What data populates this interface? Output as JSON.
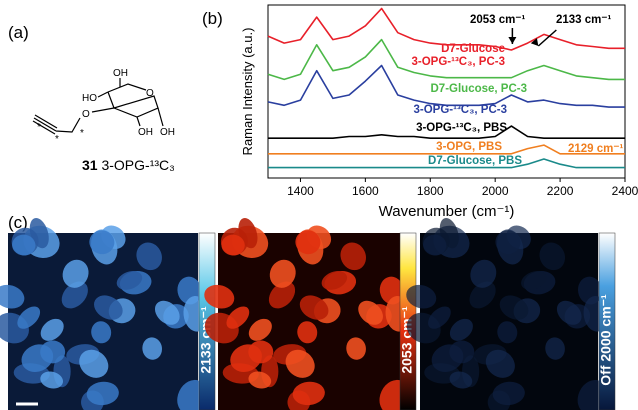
{
  "panel_labels": [
    "(a)",
    "(b)",
    "(c)"
  ],
  "structure": {
    "atom_labels": [
      "OH",
      "HO",
      "O",
      "O",
      "OH",
      "OH",
      "*",
      "*",
      "*"
    ],
    "compound_number": "31",
    "compound_name": "3-OPG-¹³C₃"
  },
  "chart_data": {
    "type": "line",
    "x_label": "Wavenumber (cm⁻¹)",
    "y_label": "Raman Intensity (a.u.)",
    "x": [
      1300,
      1350,
      1400,
      1450,
      1500,
      1550,
      1600,
      1650,
      1700,
      1750,
      1800,
      1850,
      1900,
      1950,
      2000,
      2050,
      2100,
      2150,
      2200,
      2250,
      2300,
      2350,
      2400
    ],
    "xlim": [
      1300,
      2400
    ],
    "xticks": [
      1400,
      1600,
      1800,
      2000,
      2200,
      2400
    ],
    "ylim": [
      0,
      100
    ],
    "series": [
      {
        "name": "D7-Glucose\n3-OPG-¹³C₃, PC-3",
        "color": "#e8202a",
        "values": [
          82,
          78,
          80,
          93,
          80,
          82,
          88,
          98,
          84,
          80,
          78,
          77,
          77,
          77,
          76,
          74,
          78,
          83,
          80,
          77,
          76,
          75,
          75
        ]
      },
      {
        "name": "D7-Glucose, PC-3",
        "color": "#4cb848",
        "values": [
          60,
          57,
          60,
          77,
          62,
          64,
          70,
          80,
          64,
          61,
          59,
          58,
          58,
          58,
          58,
          58,
          62,
          65,
          62,
          59,
          58,
          57,
          57
        ]
      },
      {
        "name": "3-OPG-¹³C₃, PC-3",
        "color": "#2a3f9f",
        "values": [
          44,
          42,
          45,
          62,
          46,
          48,
          56,
          65,
          48,
          45,
          43,
          42,
          42,
          42,
          43,
          48,
          44,
          45,
          43,
          42,
          42,
          41,
          41
        ]
      },
      {
        "name": "3-OPG-¹³C₃, PBS",
        "color": "#000000",
        "values": [
          23,
          23,
          23,
          23,
          23,
          24,
          24,
          25,
          24,
          24,
          23,
          23,
          23,
          23,
          24,
          30,
          24,
          23,
          23,
          23,
          23,
          23,
          23
        ]
      },
      {
        "name": "3-OPG, PBS",
        "color": "#f07f20",
        "values": [
          14,
          14,
          14,
          14,
          14,
          14,
          14,
          14,
          14,
          14,
          14,
          14,
          14,
          14,
          14,
          14,
          17,
          19,
          14,
          14,
          14,
          14,
          14
        ]
      },
      {
        "name": "D7-Glucose, PBS",
        "color": "#1a8a8a",
        "values": [
          6,
          6,
          6,
          6,
          6,
          6,
          6,
          6,
          6,
          6,
          6,
          6,
          6,
          6,
          6,
          6,
          8,
          11,
          8,
          6,
          6,
          6,
          6
        ]
      }
    ],
    "annotations": [
      {
        "text": "2053 cm⁻¹",
        "x": 2053
      },
      {
        "text": "2133 cm⁻¹",
        "x": 2133
      },
      {
        "text": "2129 cm⁻¹",
        "x": 2129
      }
    ]
  },
  "images": {
    "channel_labels": [
      "2133 cm⁻¹",
      "2053 cm⁻¹",
      "Off 2000 cm⁻¹"
    ]
  }
}
